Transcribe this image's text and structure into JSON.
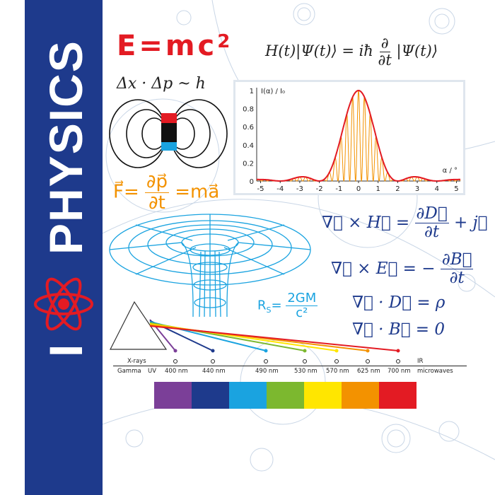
{
  "poster": {
    "sidebar_text_top": "PHYSICS",
    "sidebar_text_bottom": "I",
    "sidebar_icon": "atom-heart-icon",
    "colors": {
      "sidebar": "#1e3a8c",
      "red": "#e31b23",
      "orange": "#f39200",
      "formula_blue": "#1e3a8c",
      "light_blue": "#1aa3e0"
    }
  },
  "formulas": {
    "einstein_lhs": "E=mc",
    "einstein_exp": "2",
    "schrodinger_lhs": "H(t)|Ψ(t)⟩ = iħ",
    "schrodinger_num": "∂",
    "schrodinger_den": "∂t",
    "schrodinger_rhs": "|Ψ(t)⟩",
    "uncertainty": "Δx · Δp  ~  h",
    "force_lhs": "F⃗=",
    "force_num": "∂p⃗",
    "force_den": "∂t",
    "force_rhs": "=ma⃗",
    "schwarzschild_lhs": "R",
    "schwarzschild_sub": "S",
    "schwarzschild_eq": "=",
    "schwarzschild_num": "2GM",
    "schwarzschild_den": "c²",
    "maxwell1_lhs": "∇⃗ × H⃗ =",
    "maxwell1_num": "∂D⃗",
    "maxwell1_den": "∂t",
    "maxwell1_rhs": "+ j⃗",
    "maxwell2_lhs": "∇⃗ × E⃗ = −",
    "maxwell2_num": "∂B⃗",
    "maxwell2_den": "∂t",
    "maxwell3": "∇⃗ · D⃗ = ρ",
    "maxwell4": "∇⃗ · B⃗ = 0"
  },
  "chart_data": {
    "type": "line",
    "ylabel": "I(α) / I₀",
    "xlabel": "α / °",
    "xlim": [
      -5.2,
      5.2
    ],
    "ylim": [
      0,
      1
    ],
    "xticks": [
      "-5",
      "-4",
      "-3",
      "-2",
      "-1",
      "0",
      "1",
      "2",
      "3",
      "4",
      "5"
    ],
    "yticks": [
      "0",
      "0.2",
      "0.4",
      "0.6",
      "0.8",
      "1"
    ],
    "fringe_period": 0.3,
    "envelope": {
      "x": [
        -5,
        -4.75,
        -4.5,
        -4.25,
        -4,
        -3.75,
        -3.5,
        -3.25,
        -3,
        -2.75,
        -2.5,
        -2.25,
        -2,
        -1.75,
        -1.5,
        -1.25,
        -1,
        -0.75,
        -0.5,
        -0.25,
        0,
        0.25,
        0.5,
        0.75,
        1,
        1.25,
        1.5,
        1.75,
        2,
        2.25,
        2.5,
        2.75,
        3,
        3.25,
        3.5,
        3.75,
        4,
        4.25,
        4.5,
        4.75,
        5
      ],
      "y": [
        0.0162,
        0.0153,
        0.01,
        0.0033,
        0,
        0.0042,
        0.0165,
        0.0328,
        0.045,
        0.0457,
        0.0324,
        0.0117,
        0,
        0.0194,
        0.0901,
        0.2214,
        0.4053,
        0.615,
        0.8106,
        0.9497,
        1,
        0.9497,
        0.8106,
        0.615,
        0.4053,
        0.2214,
        0.0901,
        0.0194,
        0,
        0.0117,
        0.0324,
        0.0457,
        0.045,
        0.0328,
        0.0165,
        0.0042,
        0,
        0.0033,
        0.01,
        0.0153,
        0.0162
      ]
    },
    "colors": {
      "envelope": "#e31b23",
      "fringes": "#f39200"
    }
  },
  "spectrum": {
    "left_top": "X-rays",
    "left_bottom_1": "Gamma",
    "left_bottom_2": "UV",
    "right_top": "IR",
    "right_bottom": "microwaves",
    "lines": [
      {
        "label": "400 nm",
        "color": "#7b3f98"
      },
      {
        "label": "440 nm",
        "color": "#1e3a8c"
      },
      {
        "label": "490 nm",
        "color": "#1aa3e0"
      },
      {
        "label": "530 nm",
        "color": "#7cb82f"
      },
      {
        "label": "570 nm",
        "color": "#ffe600"
      },
      {
        "label": "625 nm",
        "color": "#f39200"
      },
      {
        "label": "700 nm",
        "color": "#e31b23"
      }
    ]
  }
}
